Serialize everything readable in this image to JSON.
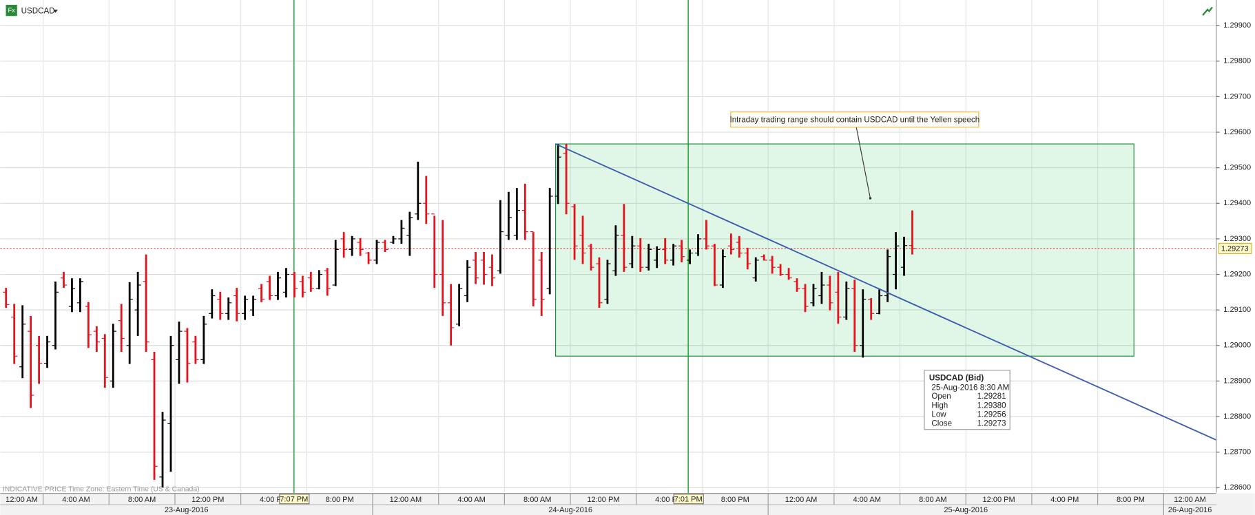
{
  "header": {
    "ticker": "USDCAD",
    "icon": "Fx"
  },
  "footer": "INDICATIVE PRICE   Time Zone: Eastern Time (US & Canada)",
  "tooltip": {
    "title": "USDCAD (Bid)",
    "date": "25-Aug-2016 8:30 AM",
    "rows": [
      {
        "name": "Open",
        "value": 1.29281
      },
      {
        "name": "High",
        "value": 1.2938,
        "label": "1.29380"
      },
      {
        "name": "Low",
        "value": 1.29256
      },
      {
        "name": "Close",
        "value": 1.29273
      }
    ]
  },
  "chart_data": {
    "type": "ohlc",
    "categories": [
      null,
      null,
      null,
      null,
      null,
      null,
      null,
      null,
      null,
      null,
      null,
      null,
      null,
      null,
      null,
      null,
      null,
      null,
      null,
      null,
      null,
      null,
      null,
      null,
      null,
      null,
      null,
      null,
      null,
      null,
      null,
      null,
      null,
      null,
      null,
      null,
      null,
      null,
      null,
      null,
      null,
      null,
      null,
      null,
      null,
      null,
      null,
      null,
      null,
      null,
      null,
      null,
      null,
      null,
      null,
      null,
      null,
      null,
      null,
      null,
      null,
      null,
      null,
      null,
      null,
      null,
      null,
      null,
      null,
      null,
      null,
      null,
      null,
      null,
      null,
      null,
      null,
      null,
      null,
      null,
      null,
      null,
      null,
      null,
      null,
      null,
      null,
      null,
      null,
      null,
      null,
      null,
      null,
      null,
      null,
      null,
      null,
      null,
      null,
      null,
      null,
      null,
      null,
      null,
      null,
      null,
      null,
      null,
      null,
      null,
      null
    ],
    "open": [
      1.2915,
      1.2908,
      1.2894,
      1.2904,
      1.29,
      1.2895,
      1.29,
      1.2919,
      1.2911,
      1.2912,
      1.2911,
      1.2904,
      1.2902,
      1.289,
      1.2907,
      1.29,
      1.291,
      1.2918,
      1.2896,
      1.2863,
      1.2878,
      1.2896,
      1.2904,
      1.2901,
      1.2896,
      1.2909,
      1.2913,
      1.2909,
      1.2914,
      1.2909,
      1.291,
      1.2916,
      1.2918,
      1.2914,
      1.2915,
      1.292,
      1.2918,
      1.2919,
      1.2916,
      1.2921,
      1.2917,
      1.293,
      1.2927,
      1.2929,
      1.2926,
      1.2924,
      1.2929,
      1.2929,
      1.293,
      1.2931,
      1.2937,
      1.294,
      1.2937,
      1.292,
      1.2912,
      1.2906,
      1.2914,
      1.2924,
      1.2924,
      1.2922,
      1.2921,
      1.2931,
      1.2931,
      1.2938,
      1.2932,
      1.2924,
      1.2916,
      1.2942,
      1.2954,
      1.2939,
      1.2931,
      1.2928,
      1.2923,
      1.2913,
      1.2921,
      1.2931,
      1.2923,
      1.2928,
      1.2922,
      1.2924,
      1.2927,
      1.2924,
      1.2928,
      1.2924,
      1.2926,
      1.293,
      1.2928,
      1.2917,
      1.2928,
      1.2929,
      1.2926,
      1.2919,
      1.2925,
      1.2924,
      1.2922,
      1.292,
      1.2918,
      1.2916,
      1.2912,
      1.2914,
      1.2917,
      1.2915,
      1.2908,
      1.2916,
      1.29,
      1.2913,
      1.2909,
      1.2914,
      1.292,
      1.2922,
      1.29281
    ],
    "high": [
      1.29162,
      1.29117,
      1.29113,
      1.29083,
      1.29027,
      1.29027,
      1.2918,
      1.29207,
      1.29189,
      1.29189,
      1.29122,
      1.29054,
      1.29032,
      1.29061,
      1.29117,
      1.29178,
      1.29207,
      1.29256,
      1.28982,
      1.28813,
      1.29027,
      1.29067,
      1.29049,
      1.29027,
      1.29083,
      1.29158,
      1.29151,
      1.29135,
      1.29162,
      1.2914,
      1.2914,
      1.29173,
      1.29196,
      1.29207,
      1.29218,
      1.29207,
      1.29196,
      1.29207,
      1.29212,
      1.29218,
      1.29297,
      1.29319,
      1.29308,
      1.29302,
      1.29263,
      1.29297,
      1.29297,
      1.29308,
      1.29353,
      1.29376,
      1.29517,
      1.29477,
      1.29365,
      1.29353,
      1.29173,
      1.29173,
      1.2924,
      1.29263,
      1.29263,
      1.29256,
      1.29409,
      1.29432,
      1.29443,
      1.29455,
      1.29319,
      1.29263,
      1.29443,
      1.29567,
      1.29567,
      1.29398,
      1.29365,
      1.29286,
      1.29248,
      1.29241,
      1.29338,
      1.29398,
      1.29308,
      1.29302,
      1.29286,
      1.29279,
      1.29302,
      1.29286,
      1.29297,
      1.2927,
      1.29313,
      1.29353,
      1.29286,
      1.2927,
      1.29315,
      1.29308,
      1.29275,
      1.29248,
      1.29256,
      1.29252,
      1.29229,
      1.29218,
      1.29189,
      1.29173,
      1.29173,
      1.29207,
      1.29196,
      1.29207,
      1.2918,
      1.29185,
      1.29158,
      1.29133,
      1.29158,
      1.2927,
      1.29319,
      1.29306,
      1.2938
    ],
    "low": [
      1.29106,
      1.28948,
      1.28908,
      1.28824,
      1.28892,
      1.28937,
      1.28989,
      1.29162,
      1.29094,
      1.29094,
      1.28993,
      1.28982,
      1.28881,
      1.28881,
      1.28982,
      1.28948,
      1.29027,
      1.28982,
      1.28622,
      1.286,
      1.28645,
      1.28892,
      1.28896,
      1.28948,
      1.28948,
      1.29076,
      1.29072,
      1.29072,
      1.29068,
      1.29072,
      1.29083,
      1.29122,
      1.29128,
      1.29128,
      1.29135,
      1.29135,
      1.29135,
      1.29151,
      1.29158,
      1.2914,
      1.29167,
      1.29247,
      1.29252,
      1.29252,
      1.29229,
      1.29229,
      1.29263,
      1.29286,
      1.29286,
      1.29252,
      1.29353,
      1.29342,
      1.29162,
      1.29083,
      1.29,
      1.29054,
      1.29122,
      1.29173,
      1.29171,
      1.29167,
      1.29202,
      1.29297,
      1.29297,
      1.29297,
      1.2911,
      1.29083,
      1.29144,
      1.29398,
      1.29369,
      1.29241,
      1.29229,
      1.29211,
      1.29106,
      1.29117,
      1.29196,
      1.29207,
      1.29218,
      1.29207,
      1.29211,
      1.29218,
      1.29229,
      1.29225,
      1.29234,
      1.29229,
      1.29252,
      1.2927,
      1.29167,
      1.29162,
      1.29256,
      1.29247,
      1.29214,
      1.2918,
      1.29239,
      1.29202,
      1.29196,
      1.29185,
      1.29151,
      1.29094,
      1.2911,
      1.29117,
      1.29099,
      1.29061,
      1.29072,
      1.28982,
      1.28966,
      1.29072,
      1.29088,
      1.29122,
      1.29158,
      1.29196,
      1.29256
    ],
    "close": [
      1.29115,
      1.2897,
      1.2906,
      1.2886,
      1.2895,
      1.2901,
      1.2915,
      1.2917,
      1.2916,
      1.2918,
      1.2903,
      1.2901,
      1.2891,
      1.2904,
      1.2902,
      1.2913,
      1.2917,
      1.2901,
      1.2866,
      1.2879,
      1.29,
      1.2904,
      1.2895,
      1.2896,
      1.2906,
      1.2914,
      1.2909,
      1.2912,
      1.2909,
      1.2913,
      1.2913,
      1.2913,
      1.2914,
      1.2919,
      1.292,
      1.2916,
      1.2915,
      1.2916,
      1.292,
      1.2916,
      1.2927,
      1.2927,
      1.293,
      1.2927,
      1.2924,
      1.2929,
      1.2927,
      1.293,
      1.2933,
      1.2936,
      1.294,
      1.2937,
      1.292,
      1.2912,
      1.2905,
      1.2916,
      1.2922,
      1.2919,
      1.292,
      1.2919,
      1.2932,
      1.2936,
      1.2938,
      1.2932,
      1.2913,
      1.2913,
      1.2942,
      1.2953,
      1.294,
      1.2928,
      1.2926,
      1.2922,
      1.2912,
      1.2923,
      1.2931,
      1.2922,
      1.2928,
      1.2922,
      1.2927,
      1.2927,
      1.2924,
      1.2928,
      1.2925,
      1.2926,
      1.293,
      1.2928,
      1.2917,
      1.2925,
      1.2927,
      1.2926,
      1.2923,
      1.2924,
      1.2924,
      1.2922,
      1.292,
      1.2919,
      1.2916,
      1.2911,
      1.2916,
      1.2917,
      1.2912,
      1.2908,
      1.2916,
      1.29,
      1.2913,
      1.2909,
      1.2914,
      1.2925,
      1.2928,
      1.29281,
      1.29273
    ],
    "up_color": "#000000",
    "down_color": "#e8101a",
    "xlim": [
      -0.7,
      146.9
    ],
    "xticks": [
      {
        "value": -3.5,
        "label": "12:00 AM"
      },
      {
        "value": 4.5,
        "label": "4:00 AM"
      },
      {
        "value": 12.5,
        "label": "8:00 AM"
      },
      {
        "value": 20.5,
        "label": "12:00 PM"
      },
      {
        "value": 28.5,
        "label": "4:00 PM"
      },
      {
        "value": 36.5,
        "label": "8:00 PM"
      },
      {
        "value": 44.5,
        "label": "12:00 AM"
      },
      {
        "value": 52.5,
        "label": "4:00 AM"
      },
      {
        "value": 60.5,
        "label": "8:00 AM"
      },
      {
        "value": 68.5,
        "label": "12:00 PM"
      },
      {
        "value": 76.5,
        "label": "4:00 PM"
      },
      {
        "value": 84.5,
        "label": "8:00 PM"
      },
      {
        "value": 92.5,
        "label": "12:00 AM"
      },
      {
        "value": 100.5,
        "label": "4:00 AM"
      },
      {
        "value": 108.5,
        "label": "8:00 AM"
      },
      {
        "value": 116.5,
        "label": "12:00 PM"
      },
      {
        "value": 124.5,
        "label": "4:00 PM"
      },
      {
        "value": 132.5,
        "label": "8:00 PM"
      },
      {
        "value": 140.5,
        "label": "12:00 AM"
      }
    ],
    "date_ticks": [
      {
        "value": -3.5,
        "label": "23-Aug-2016"
      },
      {
        "value": 44.5,
        "label": "24-Aug-2016"
      },
      {
        "value": 92.5,
        "label": "25-Aug-2016"
      },
      {
        "value": 140.5,
        "label": "26-Aug-2016"
      }
    ],
    "ylim": [
      1.28586,
      1.29972
    ],
    "yticks": [
      {
        "value": 1.299,
        "label": "1.29900"
      },
      {
        "value": 1.298,
        "label": "1.29800"
      },
      {
        "value": 1.297,
        "label": "1.29700"
      },
      {
        "value": 1.296,
        "label": "1.29600"
      },
      {
        "value": 1.295,
        "label": "1.29500"
      },
      {
        "value": 1.294,
        "label": "1.29400"
      },
      {
        "value": 1.293,
        "label": "1.29300"
      },
      {
        "value": 1.292,
        "label": "1.29200"
      },
      {
        "value": 1.291,
        "label": "1.29100"
      },
      {
        "value": 1.29,
        "label": "1.29000"
      },
      {
        "value": 1.289,
        "label": "1.28900"
      },
      {
        "value": 1.288,
        "label": "1.28800"
      },
      {
        "value": 1.287,
        "label": "1.28700"
      },
      {
        "value": 1.286,
        "label": "1.28600"
      }
    ],
    "grid": true,
    "last_price": 1.29273,
    "time_markers": [
      {
        "value": 34.95,
        "label": "7:07 PM"
      },
      {
        "value": 82.8,
        "label": "7:01 PM"
      }
    ],
    "range_box": {
      "x": [
        66.7,
        136.9
      ],
      "y": [
        1.2897,
        1.29567
      ],
      "color": "#3cd070"
    },
    "trend_line": {
      "x": [
        66.7,
        146.9
      ],
      "y": [
        1.29567,
        1.28734
      ],
      "color": "#3a5cb0"
    },
    "annotation": {
      "text": "Intraday trading range should contain USDCAD until the Yellen speech",
      "x": 104.9,
      "y": 1.29414
    }
  }
}
